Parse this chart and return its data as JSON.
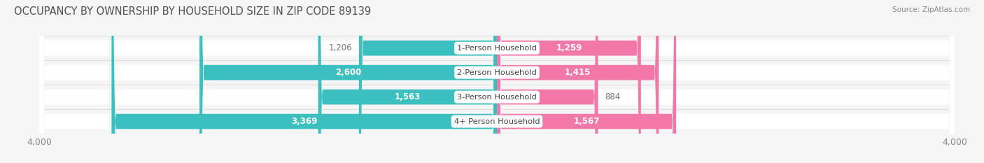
{
  "title": "OCCUPANCY BY OWNERSHIP BY HOUSEHOLD SIZE IN ZIP CODE 89139",
  "source": "Source: ZipAtlas.com",
  "categories": [
    "1-Person Household",
    "2-Person Household",
    "3-Person Household",
    "4+ Person Household"
  ],
  "owner_values": [
    1206,
    2600,
    1563,
    3369
  ],
  "renter_values": [
    1259,
    1415,
    884,
    1567
  ],
  "owner_color": "#3BBFBF",
  "renter_color": "#F178A8",
  "owner_color_light": "#A8DEDE",
  "renter_color_light": "#F9C0D6",
  "axis_max": 4000,
  "bg_color": "#f5f5f5",
  "bar_bg_color": "#ffffff",
  "bar_bg_edge": "#e0e0e0",
  "title_color": "#505050",
  "label_color": "#555555",
  "value_label_outside_color": "#777777",
  "axis_label_color": "#888888",
  "title_fontsize": 10.5,
  "bar_height": 0.62,
  "figsize": [
    14.06,
    2.33
  ],
  "dpi": 100,
  "owner_threshold": 1500,
  "renter_threshold": 1000
}
